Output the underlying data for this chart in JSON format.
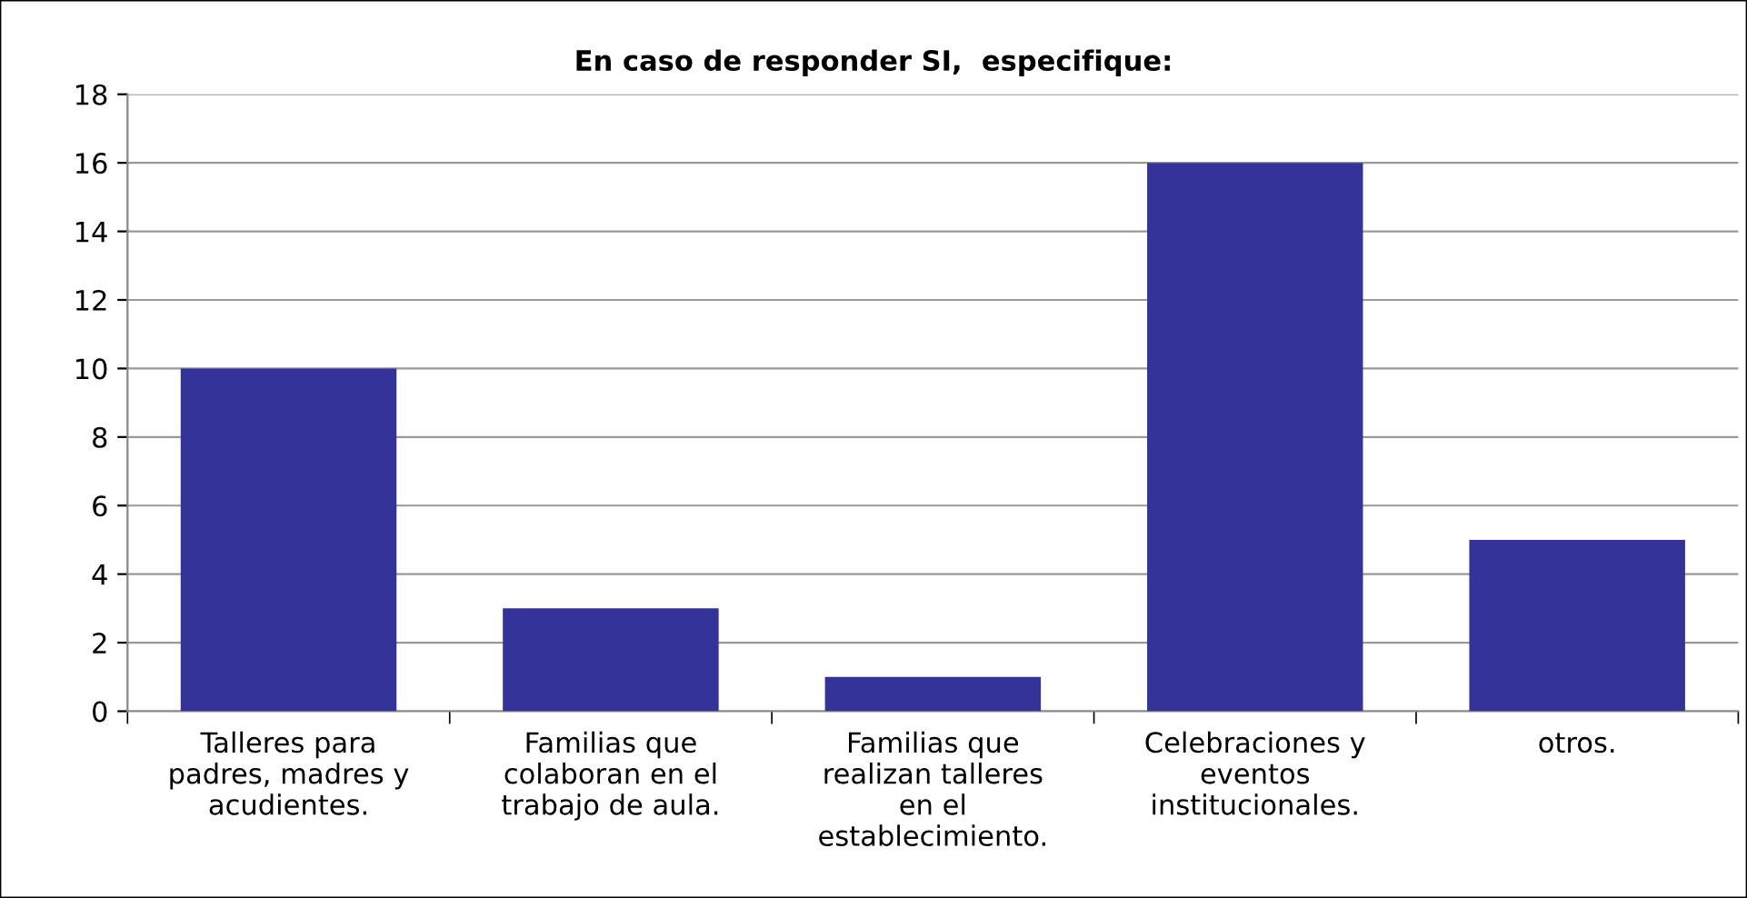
{
  "chart_data": {
    "type": "bar",
    "title": "En caso de responder SI,  especifique:",
    "categories": [
      "Talleres para\npadres, madres y\nacudientes.",
      "Familias que\ncolaboran en el\ntrabajo de aula.",
      "Familias que\nrealizan talleres\nen el\nestablecimiento.",
      "Celebraciones y\neventos\ninstitucionales.",
      "otros."
    ],
    "values": [
      10,
      3,
      1,
      16,
      5
    ],
    "color": "#333399",
    "ylim": [
      0,
      18
    ],
    "yticks": [
      0,
      2,
      4,
      6,
      8,
      10,
      12,
      14,
      16,
      18
    ],
    "grid": "y",
    "legend": false
  }
}
